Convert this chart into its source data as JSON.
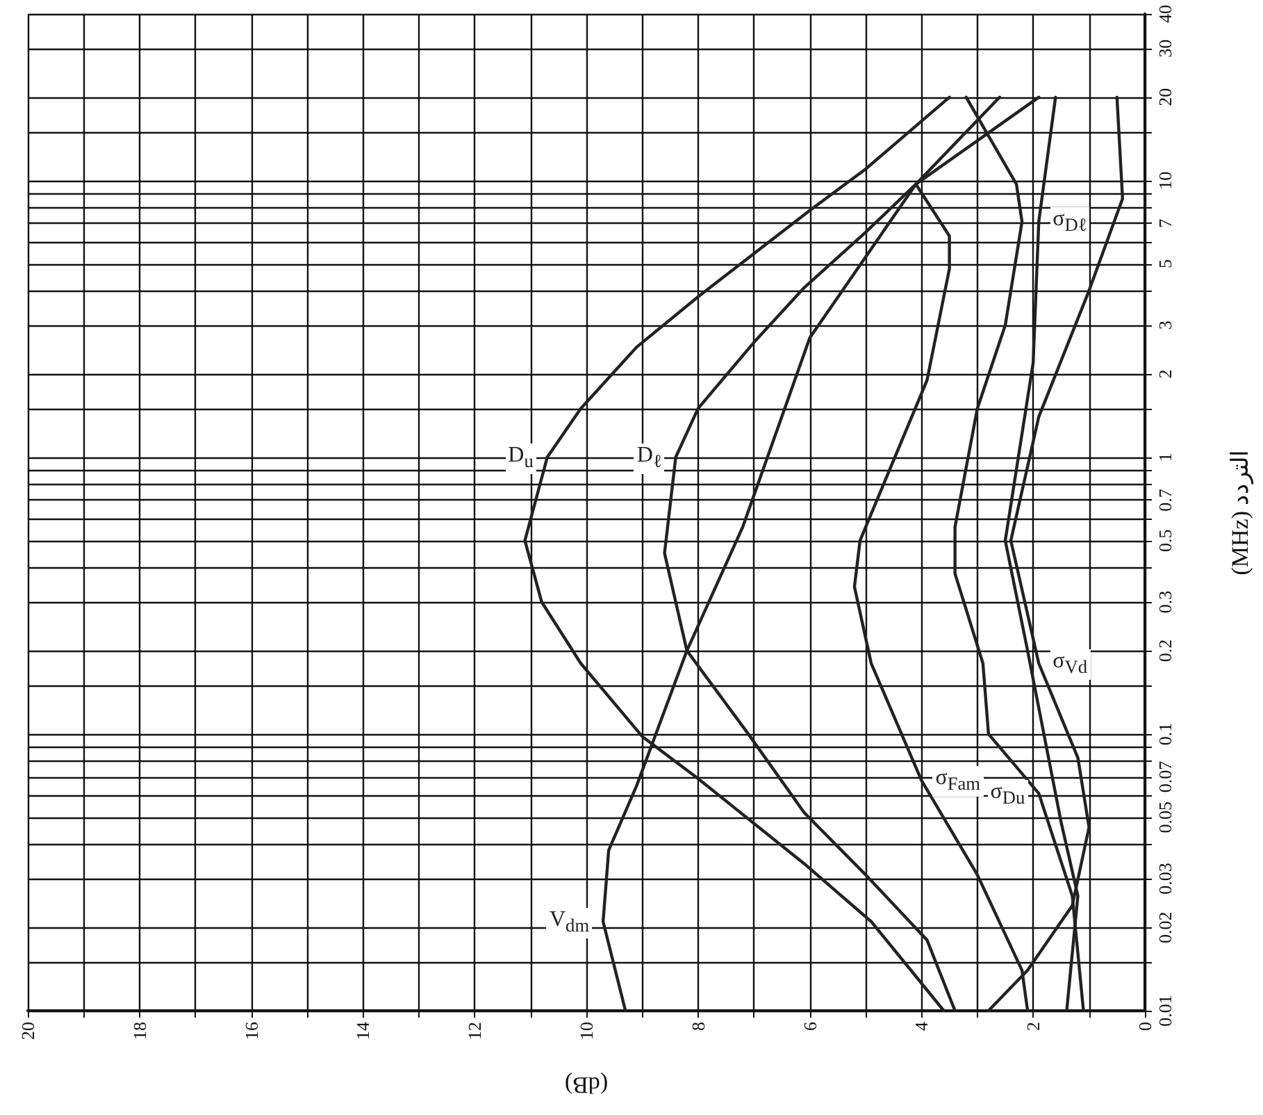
{
  "chart_data": {
    "type": "line",
    "xlabel": "(dB)",
    "ylabel": "(MHz) التردد",
    "xlim": [
      20,
      0
    ],
    "xticks": [
      0,
      {
        "value": 1,
        "label": null
      },
      2,
      {
        "value": 3,
        "label": null
      },
      4,
      {
        "value": 5,
        "label": null
      },
      6,
      {
        "value": 7,
        "label": null
      },
      8,
      {
        "value": 9,
        "label": null
      },
      10,
      {
        "value": 11,
        "label": null
      },
      12,
      {
        "value": 13,
        "label": null
      },
      14,
      {
        "value": 15,
        "label": null
      },
      16,
      {
        "value": 17,
        "label": null
      },
      18,
      {
        "value": 19,
        "label": null
      },
      20
    ],
    "ylim": [
      0.01,
      40
    ],
    "yticks": [
      0.01,
      {
        "value": 0.015,
        "label": null
      },
      0.02,
      0.03,
      {
        "value": 0.04,
        "label": null
      },
      0.05,
      {
        "value": 0.06,
        "label": null
      },
      0.07,
      {
        "value": 0.08,
        "label": null
      },
      {
        "value": 0.09,
        "label": null
      },
      0.1,
      {
        "value": 0.15,
        "label": null
      },
      0.2,
      0.3,
      {
        "value": 0.4,
        "label": null
      },
      0.5,
      {
        "value": 0.6,
        "label": null
      },
      0.7,
      {
        "value": 0.8,
        "label": null
      },
      {
        "value": 0.9,
        "label": null
      },
      1,
      {
        "value": 1.5,
        "label": null
      },
      2,
      3,
      {
        "value": 4,
        "label": null
      },
      5,
      {
        "value": 6,
        "label": null
      },
      7,
      {
        "value": 8,
        "label": null
      },
      {
        "value": 9,
        "label": null
      },
      10,
      {
        "value": 15,
        "label": null
      },
      20,
      30,
      40
    ],
    "log": "y",
    "grid": true,
    "legend": false,
    "marker": "none",
    "line_style": "solid",
    "series": [
      {
        "name": "D$_{u}$",
        "color": "#222222",
        "x": [
          3.6,
          4.9,
          6.1,
          8.0,
          9.0,
          10.1,
          10.8,
          11.1,
          10.7,
          10.1,
          9.1,
          8.0,
          6.0,
          5.0,
          3.5
        ],
        "values": [
          0.01,
          0.021,
          0.034,
          0.069,
          0.098,
          0.18,
          0.3,
          0.5,
          1.0,
          1.5,
          2.5,
          3.8,
          7.8,
          11,
          20
        ]
      },
      {
        "name": "D$_{ℓ}$",
        "color": "#222222",
        "x": [
          3.4,
          3.9,
          5.0,
          6.1,
          7.1,
          8.2,
          8.6,
          8.4,
          8.0,
          7.0,
          6.1,
          5.0,
          4.1,
          1.9
        ],
        "values": [
          0.01,
          0.018,
          0.031,
          0.052,
          0.1,
          0.2,
          0.45,
          1.0,
          1.5,
          2.6,
          4.1,
          6.5,
          9.7,
          20
        ]
      },
      {
        "name": "V$_{dm}$",
        "color": "#222222",
        "x": [
          9.3,
          9.7,
          9.6,
          9.1,
          8.2,
          7.2,
          6.0,
          4.1,
          2.6
        ],
        "values": [
          0.01,
          0.021,
          0.038,
          0.065,
          0.2,
          0.56,
          2.7,
          9.7,
          20
        ]
      },
      {
        "name": "σ$_{Fam}$",
        "color": "#222222",
        "x": [
          2.1,
          2.2,
          3.0,
          4.0,
          4.9,
          5.2,
          5.1,
          3.9,
          3.5,
          3.5,
          4.1
        ],
        "values": [
          0.01,
          0.014,
          0.031,
          0.068,
          0.18,
          0.34,
          0.5,
          1.9,
          4.8,
          6.3,
          9.7
        ]
      },
      {
        "name": "σ$_{Du}$",
        "color": "#222222",
        "x": [
          1.1,
          1.3,
          1.9,
          2.8,
          2.9,
          3.4,
          3.4,
          3.0,
          2.5,
          2.2,
          2.3,
          3.2
        ],
        "values": [
          0.01,
          0.026,
          0.061,
          0.1,
          0.18,
          0.38,
          0.56,
          1.5,
          3.0,
          7.1,
          9.7,
          20
        ]
      },
      {
        "name": "σ$_{Dℓ}$",
        "color": "#222222",
        "x": [
          1.4,
          1.2,
          1.5,
          2.1,
          2.5,
          2.0,
          1.9,
          1.6
        ],
        "values": [
          0.01,
          0.026,
          0.048,
          0.2,
          0.5,
          2.2,
          7.1,
          20
        ]
      },
      {
        "name": "σ$_{Vd}$",
        "color": "#222222",
        "x": [
          2.8,
          2.1,
          1.3,
          1.0,
          1.2,
          1.9,
          2.4,
          1.9,
          1.0,
          0.4,
          0.5
        ],
        "values": [
          0.01,
          0.014,
          0.024,
          0.046,
          0.082,
          0.18,
          0.5,
          1.4,
          4.0,
          8.6,
          20
        ]
      }
    ]
  }
}
